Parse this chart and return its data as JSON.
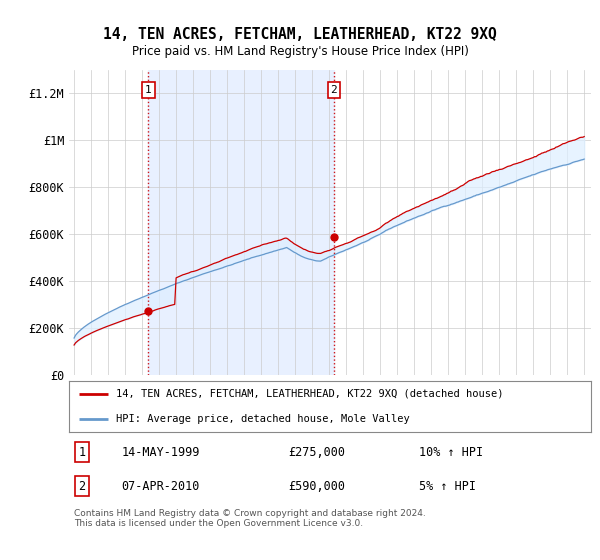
{
  "title": "14, TEN ACRES, FETCHAM, LEATHERHEAD, KT22 9XQ",
  "subtitle": "Price paid vs. HM Land Registry's House Price Index (HPI)",
  "ylim": [
    0,
    1300000
  ],
  "yticks": [
    0,
    200000,
    400000,
    600000,
    800000,
    1000000,
    1200000
  ],
  "ytick_labels": [
    "£0",
    "£200K",
    "£400K",
    "£600K",
    "£800K",
    "£1M",
    "£1.2M"
  ],
  "sale1_year": 1999.37,
  "sale1_price": 275000,
  "sale1_label": "1",
  "sale2_year": 2010.27,
  "sale2_price": 590000,
  "sale2_label": "2",
  "property_color": "#cc0000",
  "hpi_color": "#6699cc",
  "fill_color": "#ddeeff",
  "shade_color": "#e8f0ff",
  "legend1_text": "14, TEN ACRES, FETCHAM, LEATHERHEAD, KT22 9XQ (detached house)",
  "legend2_text": "HPI: Average price, detached house, Mole Valley",
  "table_row1": [
    "1",
    "14-MAY-1999",
    "£275,000",
    "10% ↑ HPI"
  ],
  "table_row2": [
    "2",
    "07-APR-2010",
    "£590,000",
    "5% ↑ HPI"
  ],
  "footnote": "Contains HM Land Registry data © Crown copyright and database right 2024.\nThis data is licensed under the Open Government Licence v3.0.",
  "background_color": "#ffffff",
  "grid_color": "#cccccc"
}
